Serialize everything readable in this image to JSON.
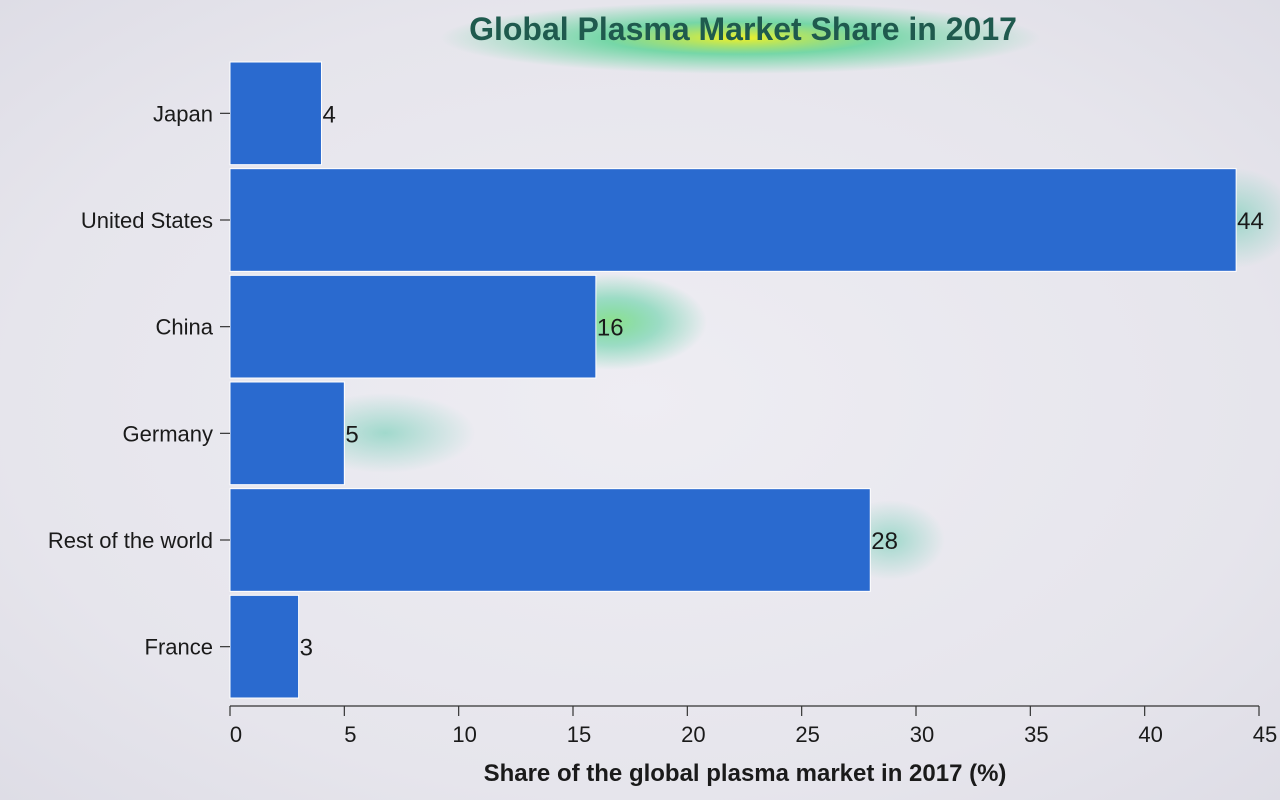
{
  "chart_data": {
    "type": "bar",
    "orientation": "horizontal",
    "title": "Global Plasma Market Share in 2017",
    "xlabel": "Share of the global plasma market in 2017 (%)",
    "ylabel": "",
    "categories": [
      "Japan",
      "United States",
      "China",
      "Germany",
      "Rest of the world",
      "France"
    ],
    "values": [
      4,
      44,
      16,
      5,
      28,
      3
    ],
    "xlim": [
      0,
      45
    ],
    "xticks": [
      0,
      5,
      10,
      15,
      20,
      25,
      30,
      35,
      40,
      45
    ],
    "bar_color": "#2a6acf",
    "data_labels": true,
    "grid": false,
    "legend": "none"
  }
}
